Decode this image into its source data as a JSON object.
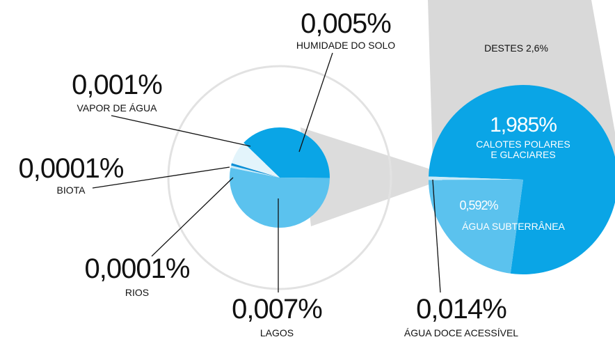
{
  "chart_data": [
    {
      "type": "pie",
      "categories": [
        "HUMIDADE DO SOLO",
        "LAGOS",
        "RIOS",
        "BIOTA",
        "VAPOR DE ÁGUA"
      ],
      "values": [
        0.005,
        0.007,
        0.0001,
        0.0001,
        0.001
      ],
      "value_labels": [
        "0,005%",
        "0,007%",
        "0,0001%",
        "0,0001%",
        "0,001%"
      ],
      "colors": [
        "#0aa5e6",
        "#5bc2ee",
        "#c9eaf8",
        "#0a8fd6",
        "#e3f4fb"
      ]
    },
    {
      "type": "pie",
      "title": "DESTES 2,6%",
      "categories": [
        "CALOTES POLARES E GLACIARES",
        "ÁGUA SUBTERRÂNEA",
        "ÁGUA  DOCE ACESSÍVEL"
      ],
      "values": [
        1.985,
        0.592,
        0.014
      ],
      "value_labels": [
        "1,985%",
        "0,592%",
        "0,014%"
      ],
      "colors": [
        "#0aa5e6",
        "#5bc2ee",
        "#c9eaf8"
      ]
    }
  ]
}
